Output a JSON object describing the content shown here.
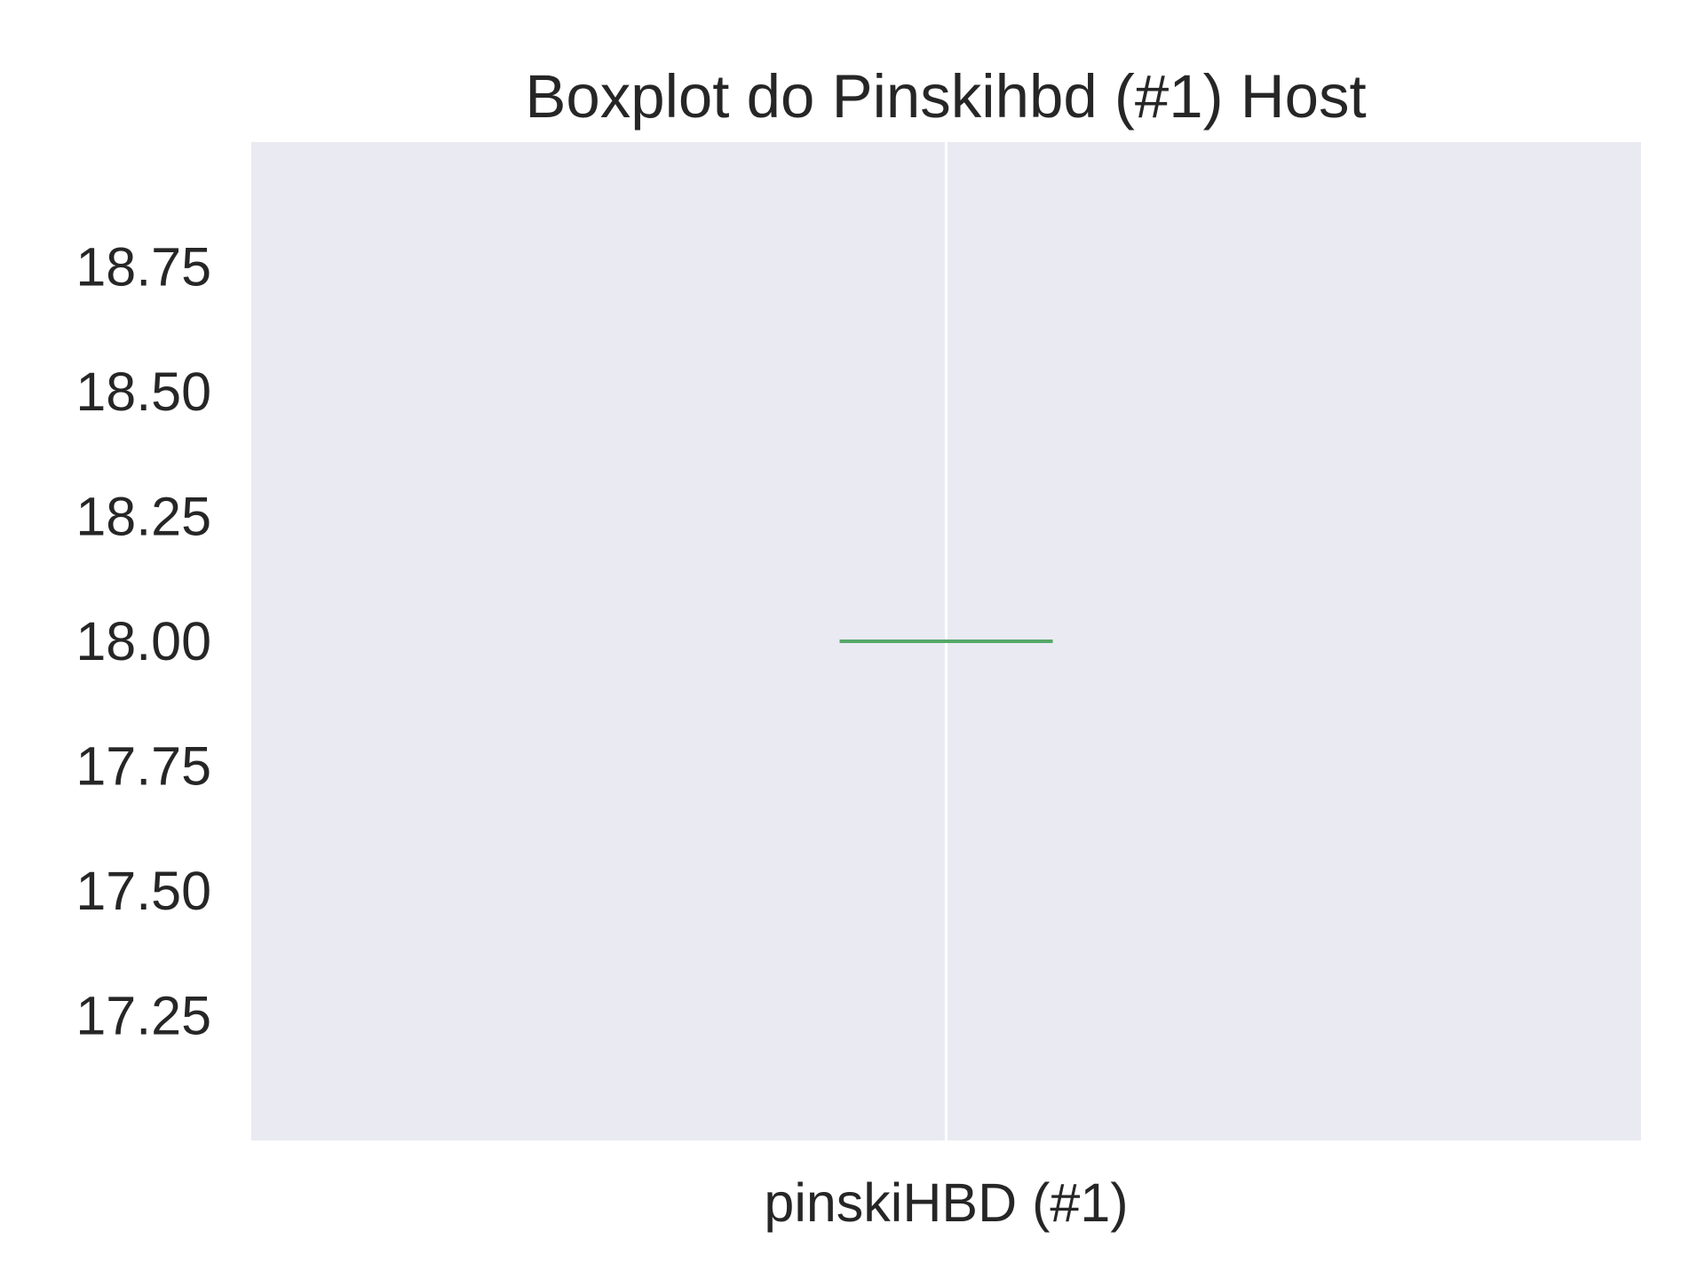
{
  "chart_data": {
    "type": "box",
    "title": "Boxplot do Pinskihbd (#1) Host",
    "xlabel": "",
    "ylabel": "",
    "categories": [
      "pinskiHBD (#1)"
    ],
    "series": [
      {
        "values": [
          18.0
        ],
        "median": 18.0,
        "q1": 18.0,
        "q3": 18.0,
        "whisker_low": 18.0,
        "whisker_high": 18.0
      }
    ],
    "ylim": [
      17.0,
      19.0
    ],
    "yticks": [
      17.25,
      17.5,
      17.75,
      18.0,
      18.25,
      18.5,
      18.75
    ],
    "ytick_labels": [
      "17.25",
      "17.50",
      "17.75",
      "18.00",
      "18.25",
      "18.50",
      "18.75"
    ],
    "grid": true,
    "colors": {
      "plot_background": "#EAEAF2",
      "median": "#55A868",
      "box": "#4C72B0",
      "grid": "#FFFFFF",
      "text": "#262626"
    }
  }
}
